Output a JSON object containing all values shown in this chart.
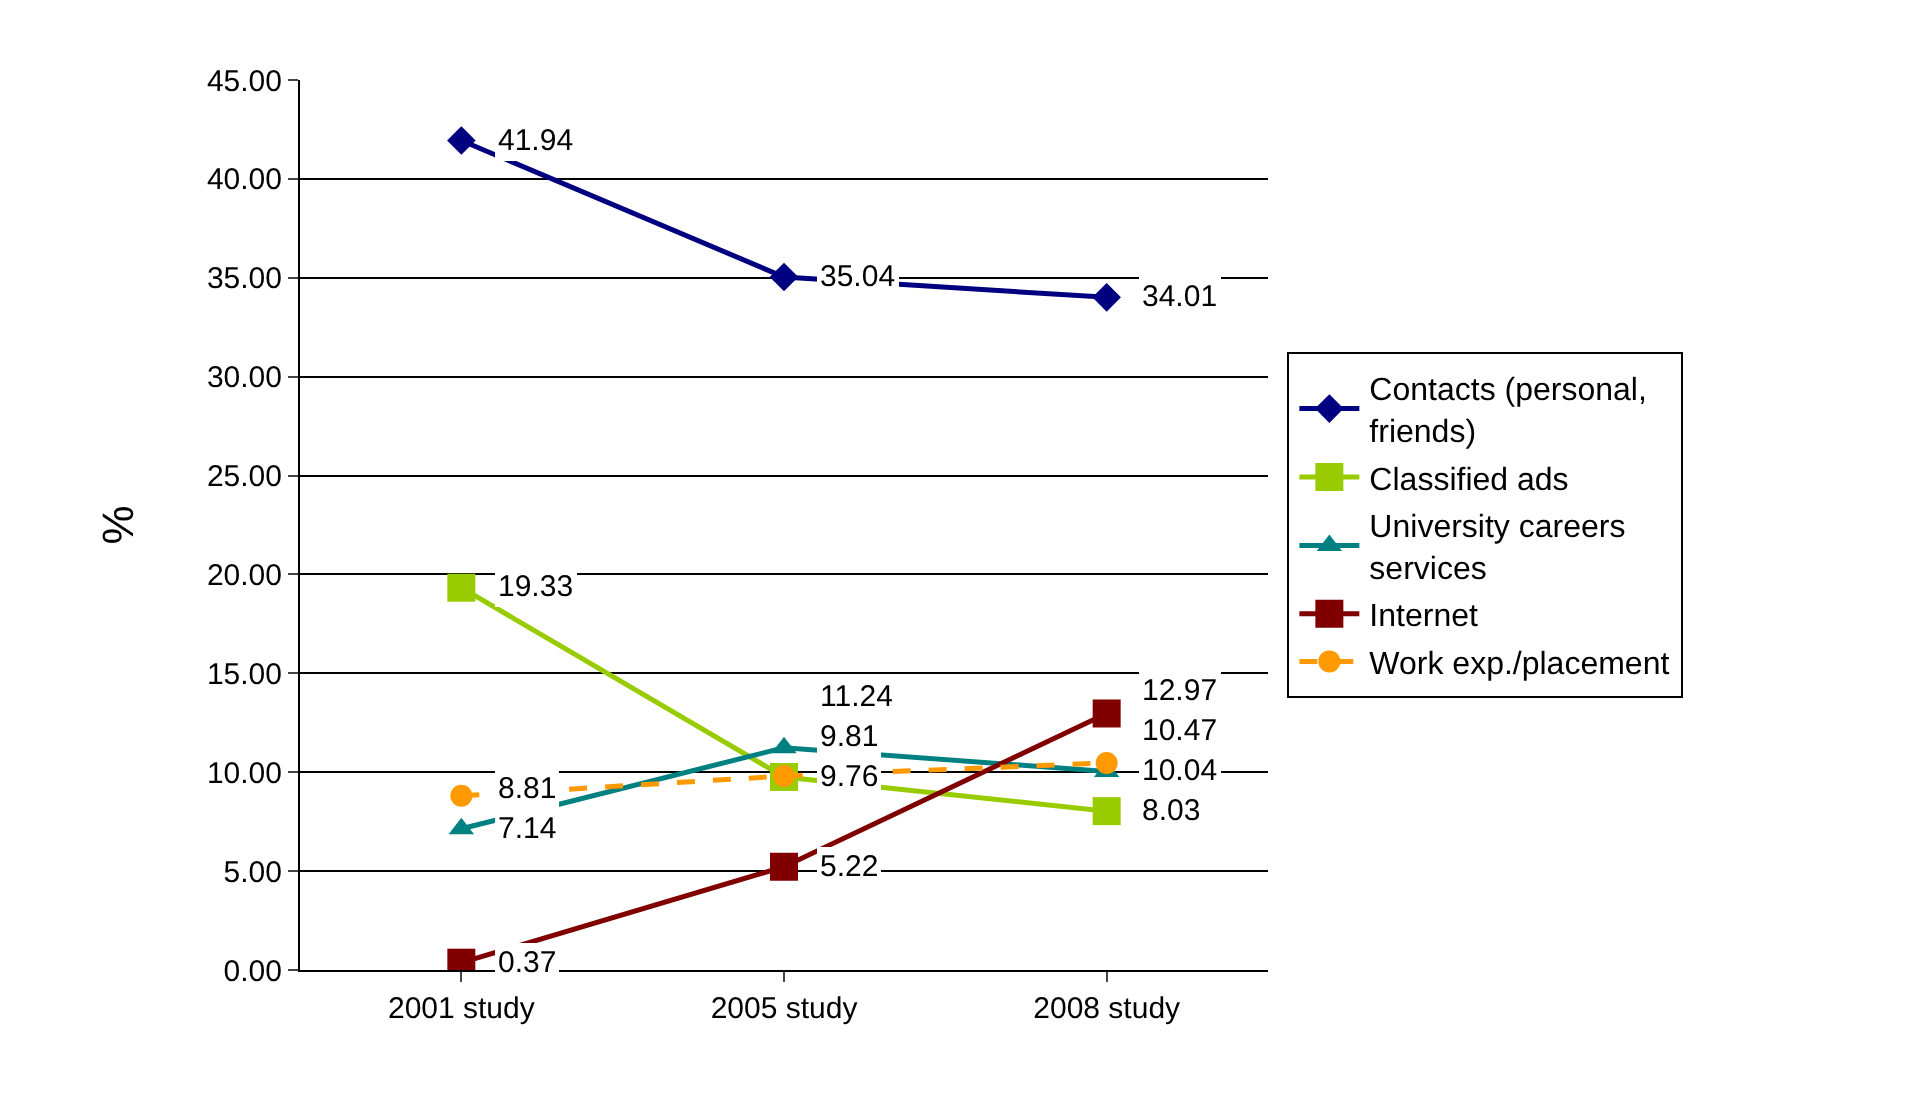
{
  "chart_data": {
    "type": "line",
    "ylabel": "%",
    "categories": [
      "2001 study",
      "2005 study",
      "2008 study"
    ],
    "series": [
      {
        "name": "Contacts (personal, friends)",
        "color": "#000080",
        "marker": "diamond",
        "line_style": "solid",
        "values": [
          41.94,
          35.04,
          34.01
        ]
      },
      {
        "name": "Classified ads",
        "color": "#99cc00",
        "marker": "square",
        "line_style": "solid",
        "values": [
          19.33,
          9.76,
          8.03
        ]
      },
      {
        "name": "University careers services",
        "color": "#008080",
        "marker": "triangle",
        "line_style": "solid",
        "values": [
          7.14,
          11.24,
          10.04
        ]
      },
      {
        "name": "Internet",
        "color": "#800000",
        "marker": "square",
        "line_style": "solid",
        "values": [
          0.37,
          5.22,
          12.97
        ]
      },
      {
        "name": "Work exp./placement",
        "color": "#ff9900",
        "marker": "circle",
        "line_style": "dashed",
        "values": [
          8.81,
          9.81,
          10.47
        ]
      }
    ],
    "ylim": [
      0,
      45
    ],
    "yticks": [
      {
        "value": 0,
        "label": "0.00"
      },
      {
        "value": 5,
        "label": "5.00"
      },
      {
        "value": 10,
        "label": "10.00"
      },
      {
        "value": 15,
        "label": "15.00"
      },
      {
        "value": 20,
        "label": "20.00"
      },
      {
        "value": 25,
        "label": "25.00"
      },
      {
        "value": 30,
        "label": "30.00"
      },
      {
        "value": 35,
        "label": "35.00"
      },
      {
        "value": 40,
        "label": "40.00"
      },
      {
        "value": 45,
        "label": "45.00"
      }
    ],
    "grid": "y",
    "legend": "right",
    "data_labels": true
  }
}
